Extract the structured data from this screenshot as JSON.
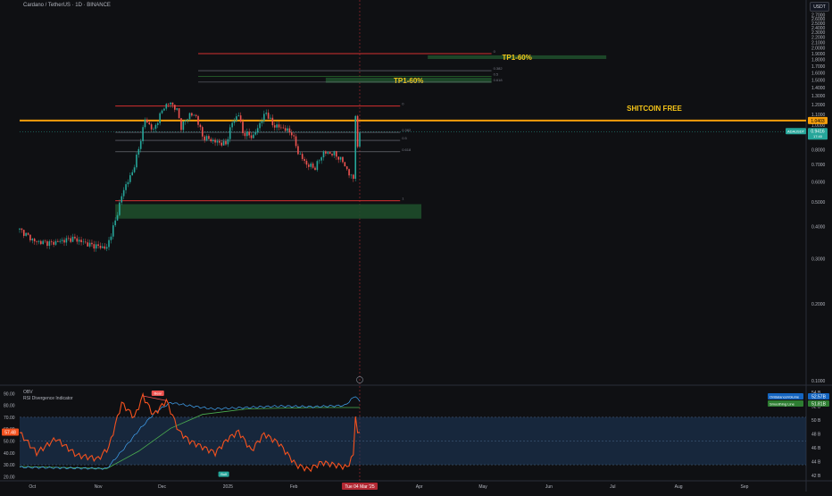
{
  "header": {
    "title": "Cardano / TetherUS · 1D · BINANCE",
    "currency_button": "USDT"
  },
  "colors": {
    "background": "#0f1013",
    "up_candle": "#26a69a",
    "down_candle": "#ef5350",
    "key_level": "#f59e0b",
    "target_zone": "#1e4d2b",
    "rsi_line": "#f4511e",
    "obv_line": "#42a5f5",
    "obv_smoothing": "#4caf50",
    "annotation_text": "#f5c518"
  },
  "chart_data": [
    {
      "type": "candlestick",
      "symbol": "ADAUSDT",
      "xlabel": "",
      "ylabel": "",
      "x_tick_labels": [
        "Oct",
        "Nov",
        "Dec",
        "2025",
        "Feb",
        "Tue 04 Mar '25",
        "Apr",
        "May",
        "Jun",
        "Jul",
        "Aug",
        "Sep"
      ],
      "y_scale": "log",
      "y_ticks": [
        "2.7000",
        "2.6000",
        "2.5000",
        "2.4000",
        "2.3000",
        "2.2000",
        "2.1000",
        "2.0000",
        "1.9000",
        "1.8000",
        "1.7000",
        "1.6000",
        "1.5000",
        "1.4000",
        "1.3000",
        "1.2000",
        "1.1000",
        "1.0000",
        "0.9000",
        "0.8000",
        "0.7000",
        "0.6000",
        "0.5000",
        "0.4000",
        "0.3000",
        "0.2000",
        "0.1000"
      ],
      "ylim": [
        0.1,
        2.75
      ],
      "key_level": 1.04,
      "key_level_label": "1.0403",
      "last_price": 0.9416,
      "last_price_label": "0.9416",
      "last_price_sub": "17:40",
      "symbol_badge": "ADAUSDT",
      "cursor_date_label": "Tue 04 Mar '25",
      "close_path": [
        {
          "date": "2024-09-25",
          "close": 0.39
        },
        {
          "date": "2024-10-02",
          "close": 0.35
        },
        {
          "date": "2024-10-10",
          "close": 0.345
        },
        {
          "date": "2024-10-20",
          "close": 0.36
        },
        {
          "date": "2024-10-28",
          "close": 0.34
        },
        {
          "date": "2024-11-05",
          "close": 0.33
        },
        {
          "date": "2024-11-09",
          "close": 0.42
        },
        {
          "date": "2024-11-13",
          "close": 0.56
        },
        {
          "date": "2024-11-17",
          "close": 0.65
        },
        {
          "date": "2024-11-20",
          "close": 0.8
        },
        {
          "date": "2024-11-23",
          "close": 1.05
        },
        {
          "date": "2024-11-27",
          "close": 0.95
        },
        {
          "date": "2024-12-02",
          "close": 1.18
        },
        {
          "date": "2024-12-05",
          "close": 1.22
        },
        {
          "date": "2024-12-08",
          "close": 1.14
        },
        {
          "date": "2024-12-10",
          "close": 0.98
        },
        {
          "date": "2024-12-14",
          "close": 1.1
        },
        {
          "date": "2024-12-17",
          "close": 1.08
        },
        {
          "date": "2024-12-20",
          "close": 0.9
        },
        {
          "date": "2024-12-26",
          "close": 0.86
        },
        {
          "date": "2024-12-31",
          "close": 0.84
        },
        {
          "date": "2025-01-03",
          "close": 1.02
        },
        {
          "date": "2025-01-06",
          "close": 1.1
        },
        {
          "date": "2025-01-08",
          "close": 0.93
        },
        {
          "date": "2025-01-13",
          "close": 0.9
        },
        {
          "date": "2025-01-17",
          "close": 1.05
        },
        {
          "date": "2025-01-19",
          "close": 1.12
        },
        {
          "date": "2025-01-22",
          "close": 1.0
        },
        {
          "date": "2025-01-27",
          "close": 0.97
        },
        {
          "date": "2025-01-31",
          "close": 0.93
        },
        {
          "date": "2025-02-03",
          "close": 0.78
        },
        {
          "date": "2025-02-07",
          "close": 0.7
        },
        {
          "date": "2025-02-11",
          "close": 0.68
        },
        {
          "date": "2025-02-15",
          "close": 0.78
        },
        {
          "date": "2025-02-20",
          "close": 0.77
        },
        {
          "date": "2025-02-24",
          "close": 0.72
        },
        {
          "date": "2025-02-27",
          "close": 0.64
        },
        {
          "date": "2025-03-01",
          "close": 0.62
        },
        {
          "date": "2025-03-02",
          "close": 1.1
        },
        {
          "date": "2025-03-03",
          "close": 0.8
        },
        {
          "date": "2025-03-04",
          "close": 0.94
        }
      ],
      "zones": [
        {
          "label": "",
          "from": "2024-11-09",
          "to": "2025-04-02",
          "low": 0.43,
          "high": 0.49
        },
        {
          "label": "TP1-60%",
          "from": "2025-02-16",
          "to": "2025-05-05",
          "low": 1.46,
          "high": 1.53
        },
        {
          "label": "TP1-60%",
          "from": "2025-04-05",
          "to": "2025-06-28",
          "low": 1.81,
          "high": 1.87
        }
      ],
      "fib_levels": [
        {
          "label": "0",
          "price": 1.185
        },
        {
          "label": "0.382",
          "price": 0.935
        },
        {
          "label": "0.5",
          "price": 0.87
        },
        {
          "label": "0.618",
          "price": 0.785
        },
        {
          "label": "1",
          "price": 0.505
        }
      ],
      "upper_fib_levels": [
        {
          "label": "0",
          "price": 1.9
        },
        {
          "label": "0.382",
          "price": 1.63
        },
        {
          "label": "0.5",
          "price": 1.55
        },
        {
          "label": "0.618",
          "price": 1.47
        }
      ],
      "annotations": [
        "SHITCOIN FREE"
      ]
    },
    {
      "type": "line",
      "indicators": [
        "OBV",
        "RSI Divergence Indicator"
      ],
      "left_y_ticks": [
        "90.00",
        "80.00",
        "70.00",
        "60.00",
        "50.00",
        "40.00",
        "30.00",
        "20.00"
      ],
      "right_y_ticks": [
        "54 B",
        "52 B",
        "50 B",
        "48 B",
        "46 B",
        "44 B",
        "42 B"
      ],
      "ylim": [
        18,
        94
      ],
      "band": [
        30,
        70
      ],
      "mid": 50,
      "rsi_value_label": "57.48",
      "obv_value_label": "52.57B",
      "obv_smoothing_value_label": "51.81B",
      "legend_obv": "OnBalanceVolume",
      "legend_smoothing": "Smoothing Line",
      "bear_label": "Bear",
      "bull_label": "Bull",
      "rsi_path": [
        {
          "date": "2024-09-25",
          "rsi": 57
        },
        {
          "date": "2024-10-03",
          "rsi": 40
        },
        {
          "date": "2024-10-12",
          "rsi": 52
        },
        {
          "date": "2024-10-22",
          "rsi": 38
        },
        {
          "date": "2024-11-01",
          "rsi": 35
        },
        {
          "date": "2024-11-06",
          "rsi": 45
        },
        {
          "date": "2024-11-12",
          "rsi": 82
        },
        {
          "date": "2024-11-18",
          "rsi": 70
        },
        {
          "date": "2024-11-22",
          "rsi": 88
        },
        {
          "date": "2024-11-27",
          "rsi": 72
        },
        {
          "date": "2024-12-03",
          "rsi": 84
        },
        {
          "date": "2024-12-09",
          "rsi": 58
        },
        {
          "date": "2024-12-14",
          "rsi": 50
        },
        {
          "date": "2024-12-20",
          "rsi": 45
        },
        {
          "date": "2024-12-26",
          "rsi": 40
        },
        {
          "date": "2025-01-01",
          "rsi": 52
        },
        {
          "date": "2025-01-06",
          "rsi": 58
        },
        {
          "date": "2025-01-12",
          "rsi": 42
        },
        {
          "date": "2025-01-18",
          "rsi": 56
        },
        {
          "date": "2025-01-25",
          "rsi": 48
        },
        {
          "date": "2025-02-02",
          "rsi": 30
        },
        {
          "date": "2025-02-08",
          "rsi": 26
        },
        {
          "date": "2025-02-14",
          "rsi": 32
        },
        {
          "date": "2025-02-20",
          "rsi": 30
        },
        {
          "date": "2025-02-26",
          "rsi": 28
        },
        {
          "date": "2025-03-01",
          "rsi": 38
        },
        {
          "date": "2025-03-02",
          "rsi": 73
        },
        {
          "date": "2025-03-03",
          "rsi": 55
        },
        {
          "date": "2025-03-04",
          "rsi": 57
        }
      ],
      "obv_path": [
        {
          "date": "2024-09-25",
          "obv": 43.2
        },
        {
          "date": "2024-10-15",
          "obv": 43.1
        },
        {
          "date": "2024-11-05",
          "obv": 43.0
        },
        {
          "date": "2024-11-12",
          "obv": 45.5
        },
        {
          "date": "2024-11-20",
          "obv": 48.5
        },
        {
          "date": "2024-11-28",
          "obv": 51.2
        },
        {
          "date": "2024-12-05",
          "obv": 52.5
        },
        {
          "date": "2024-12-15",
          "obv": 52.0
        },
        {
          "date": "2024-12-25",
          "obv": 51.6
        },
        {
          "date": "2025-01-10",
          "obv": 51.8
        },
        {
          "date": "2025-01-25",
          "obv": 52.0
        },
        {
          "date": "2025-02-10",
          "obv": 51.9
        },
        {
          "date": "2025-02-25",
          "obv": 52.1
        },
        {
          "date": "2025-03-02",
          "obv": 53.5
        },
        {
          "date": "2025-03-04",
          "obv": 52.6
        }
      ],
      "obv_smoothing_path": [
        {
          "date": "2024-09-25",
          "obv": 43.3
        },
        {
          "date": "2024-11-05",
          "obv": 43.0
        },
        {
          "date": "2024-11-20",
          "obv": 45.5
        },
        {
          "date": "2024-12-05",
          "obv": 48.8
        },
        {
          "date": "2024-12-20",
          "obv": 50.8
        },
        {
          "date": "2025-01-10",
          "obv": 51.6
        },
        {
          "date": "2025-02-10",
          "obv": 51.8
        },
        {
          "date": "2025-03-04",
          "obv": 51.8
        }
      ]
    }
  ]
}
